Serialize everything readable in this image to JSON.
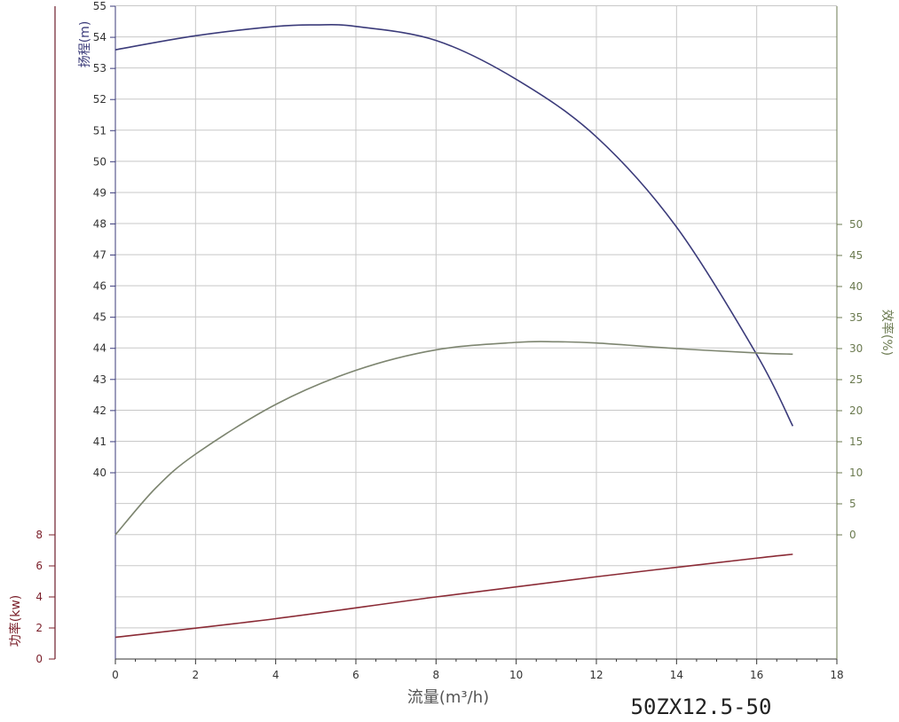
{
  "chart_data": {
    "type": "line",
    "model_label": "50ZX12.5-50",
    "xlabel": "流量(m³/h)",
    "xlim": [
      0,
      18
    ],
    "xticks": [
      0,
      2,
      4,
      6,
      8,
      10,
      12,
      14,
      16,
      18
    ],
    "grid": true,
    "axes": {
      "head": {
        "label": "扬程(m)",
        "ylim": [
          40,
          55
        ],
        "ticks": [
          40,
          41,
          42,
          43,
          44,
          45,
          46,
          47,
          48,
          49,
          50,
          51,
          52,
          53,
          54,
          55
        ],
        "color": "#3b3b7a"
      },
      "power": {
        "label": "功率(kw)",
        "ylim": [
          0,
          8
        ],
        "ticks": [
          0,
          2,
          4,
          6,
          8
        ],
        "color": "#7a1f2a"
      },
      "efficiency": {
        "label": "效率(%)",
        "ylim": [
          0,
          50
        ],
        "ticks": [
          0,
          5,
          10,
          15,
          20,
          25,
          30,
          35,
          40,
          45,
          50
        ],
        "color": "#6b7a50"
      }
    },
    "series": [
      {
        "axis": "head",
        "color": "#3b3b7a",
        "x": [
          0,
          2,
          4,
          5,
          6,
          8,
          10,
          12,
          14,
          16,
          16.9
        ],
        "y": [
          53.6,
          54.05,
          54.35,
          54.4,
          54.35,
          53.9,
          52.65,
          50.8,
          47.9,
          43.8,
          41.5
        ]
      },
      {
        "axis": "efficiency",
        "color": "#7d8570",
        "x": [
          0,
          1,
          2,
          4,
          6,
          8,
          10,
          11,
          12,
          14,
          16,
          16.9
        ],
        "y": [
          0,
          7.5,
          13,
          21,
          26.5,
          29.8,
          31,
          31.1,
          30.9,
          30,
          29.3,
          29.1
        ]
      },
      {
        "axis": "power",
        "color": "#8a2a35",
        "x": [
          0,
          4,
          8,
          12,
          16,
          16.9
        ],
        "y": [
          1.4,
          2.6,
          4.0,
          5.3,
          6.5,
          6.75
        ]
      }
    ]
  }
}
